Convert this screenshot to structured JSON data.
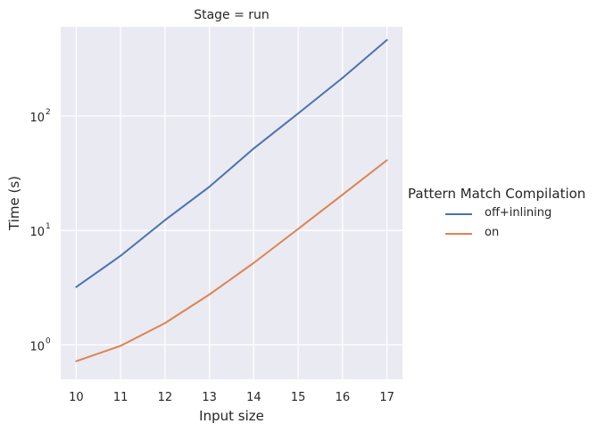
{
  "chart_data": {
    "type": "line",
    "title": "Stage = run",
    "xlabel": "Input size",
    "ylabel": "Time (s)",
    "x": [
      10,
      11,
      12,
      13,
      14,
      15,
      16,
      17
    ],
    "xticks": [
      "10",
      "11",
      "12",
      "13",
      "14",
      "15",
      "16",
      "17"
    ],
    "yscale": "log",
    "ylim": [
      0.5,
      600
    ],
    "yticks": [
      {
        "value": 1,
        "base": "10",
        "exp": "0"
      },
      {
        "value": 10,
        "base": "10",
        "exp": "1"
      },
      {
        "value": 100,
        "base": "10",
        "exp": "2"
      }
    ],
    "grid": true,
    "legend": {
      "title": "Pattern Match Compilation",
      "placement": "right"
    },
    "series": [
      {
        "name": "off+inlining",
        "color": "#4c72b0",
        "values": [
          3.2,
          6.0,
          12.3,
          24.0,
          52.0,
          105.0,
          215.0,
          460.0
        ]
      },
      {
        "name": "on",
        "color": "#dd8452",
        "values": [
          0.72,
          0.98,
          1.55,
          2.75,
          5.2,
          10.3,
          20.5,
          41.0
        ]
      }
    ],
    "background": "#eaeaf2",
    "gridColor": "#ffffff"
  }
}
